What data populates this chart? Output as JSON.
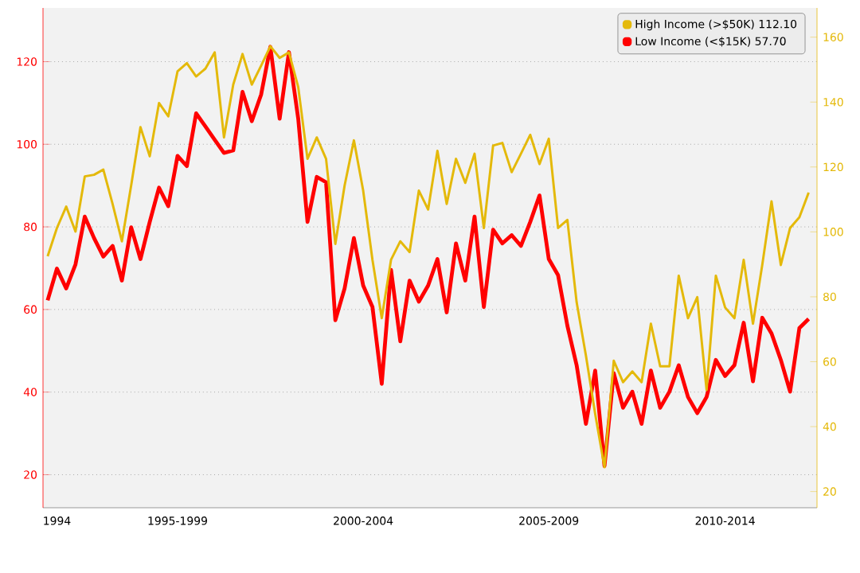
{
  "chart_data": {
    "type": "line",
    "categories": [
      null,
      "1994",
      null,
      null,
      null,
      null,
      null,
      null,
      null,
      null,
      null,
      null,
      null,
      null,
      "1995-1999",
      null,
      null,
      null,
      null,
      null,
      null,
      null,
      null,
      null,
      null,
      null,
      null,
      null,
      null,
      null,
      null,
      null,
      null,
      null,
      "2000-2004",
      null,
      null,
      null,
      null,
      null,
      null,
      null,
      null,
      null,
      null,
      null,
      null,
      null,
      null,
      null,
      null,
      null,
      null,
      null,
      "2005-2009",
      null,
      null,
      null,
      null,
      null,
      null,
      null,
      null,
      null,
      null,
      null,
      null,
      null,
      null,
      null,
      null,
      null,
      null,
      "2010-2014",
      null,
      null,
      null,
      null,
      null,
      null,
      null,
      null,
      null
    ],
    "ylim": [
      12,
      133
    ],
    "y2lim": [
      15,
      169
    ],
    "yticks": [
      20,
      40,
      60,
      80,
      100,
      120
    ],
    "y2ticks": [
      20,
      40,
      60,
      80,
      100,
      120,
      140,
      160
    ],
    "grid": "y",
    "legend": "top right",
    "marker": "none",
    "line_style": "solid",
    "series": [
      {
        "name": "High Income (>$50K)  112.10",
        "color": "#e4b90a",
        "axis": "y2",
        "values": [
          92.5,
          101.2,
          107.8,
          100.1,
          117.1,
          117.6,
          119.2,
          108.6,
          97.1,
          114.3,
          132.3,
          123.3,
          139.7,
          135.6,
          149.5,
          152.0,
          147.9,
          150.3,
          155.3,
          129.1,
          145.4,
          154.8,
          145.4,
          151.2,
          157.2,
          153.6,
          155.3,
          144.6,
          122.5,
          129.1,
          122.5,
          96.3,
          114.3,
          128.2,
          112.7,
          91.4,
          73.4,
          91.4,
          97.1,
          93.8,
          112.7,
          106.9,
          125.0,
          108.6,
          122.5,
          115.1,
          124.1,
          101.2,
          126.6,
          127.4,
          118.4,
          124.1,
          129.9,
          120.9,
          128.7,
          101.2,
          103.7,
          78.3,
          61.9,
          43.9,
          27.5,
          60.3,
          53.7,
          57.0,
          53.7,
          71.7,
          58.6,
          58.6,
          86.5,
          73.4,
          79.9,
          51.3,
          86.5,
          76.7,
          73.4,
          91.4,
          71.7,
          89.8,
          109.4,
          89.8,
          101.2,
          104.5,
          112.1
        ]
      },
      {
        "name": "Low Income (<$15K)  57.70",
        "color": "#ff0000",
        "axis": "y",
        "values": [
          62.2,
          69.9,
          65.1,
          70.9,
          82.5,
          77.3,
          72.8,
          75.4,
          67.0,
          79.9,
          72.2,
          81.2,
          89.5,
          85.0,
          97.2,
          94.7,
          107.5,
          104.3,
          101.1,
          97.9,
          98.5,
          112.7,
          105.6,
          112.0,
          123.6,
          106.2,
          122.3,
          106.2,
          81.2,
          92.1,
          90.8,
          57.4,
          65.1,
          77.3,
          65.8,
          60.6,
          42.0,
          69.6,
          52.3,
          67.0,
          61.9,
          65.8,
          72.2,
          59.3,
          76.0,
          67.0,
          82.5,
          60.6,
          79.3,
          76.0,
          78.0,
          75.4,
          81.2,
          87.6,
          72.2,
          68.3,
          56.1,
          46.5,
          32.3,
          45.2,
          22.1,
          44.6,
          36.2,
          40.1,
          32.3,
          45.2,
          36.2,
          40.1,
          46.5,
          38.8,
          34.9,
          38.8,
          47.8,
          43.9,
          46.5,
          56.8,
          42.6,
          58.0,
          54.2,
          47.8,
          40.1,
          55.5,
          57.7
        ]
      }
    ]
  }
}
